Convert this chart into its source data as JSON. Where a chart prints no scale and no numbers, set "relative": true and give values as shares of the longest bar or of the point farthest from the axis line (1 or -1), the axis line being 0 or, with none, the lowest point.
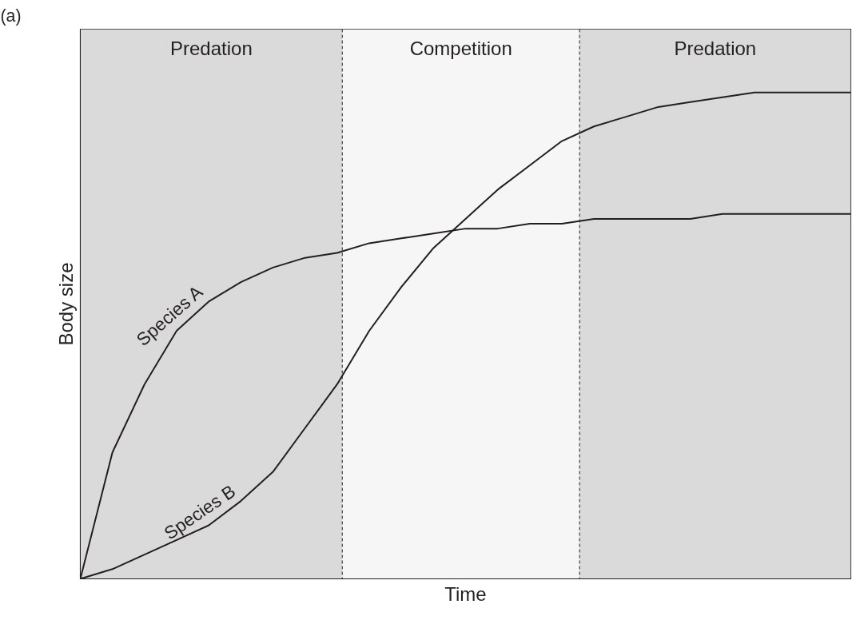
{
  "chart_data": {
    "type": "line",
    "relative": true,
    "xlabel": "Time",
    "ylabel": "Body size",
    "annotations": [
      "(a)",
      "Predation",
      "Competition",
      "Predation"
    ],
    "categories": [
      null,
      null,
      null,
      null,
      null,
      null,
      null,
      null,
      null,
      null,
      null,
      null,
      null,
      null,
      null,
      null,
      null,
      null,
      null,
      null,
      null,
      null,
      null,
      null,
      null
    ],
    "series": [
      {
        "name": "Species A",
        "color": "#231f20",
        "values": [
          0,
          0.26,
          0.4,
          0.51,
          0.57,
          0.61,
          0.64,
          0.66,
          0.67,
          0.69,
          0.7,
          0.71,
          0.72,
          0.72,
          0.73,
          0.73,
          0.74,
          0.74,
          0.74,
          0.74,
          0.75,
          0.75,
          0.75,
          0.75,
          0.75
        ]
      },
      {
        "name": "Species B",
        "color": "#231f20",
        "values": [
          0,
          0.02,
          0.05,
          0.08,
          0.11,
          0.16,
          0.22,
          0.31,
          0.4,
          0.51,
          0.6,
          0.68,
          0.74,
          0.8,
          0.85,
          0.9,
          0.93,
          0.95,
          0.97,
          0.98,
          0.99,
          1.0,
          1.0,
          1.0,
          1.0
        ]
      }
    ],
    "marker": "none",
    "line_style": "solid"
  }
}
